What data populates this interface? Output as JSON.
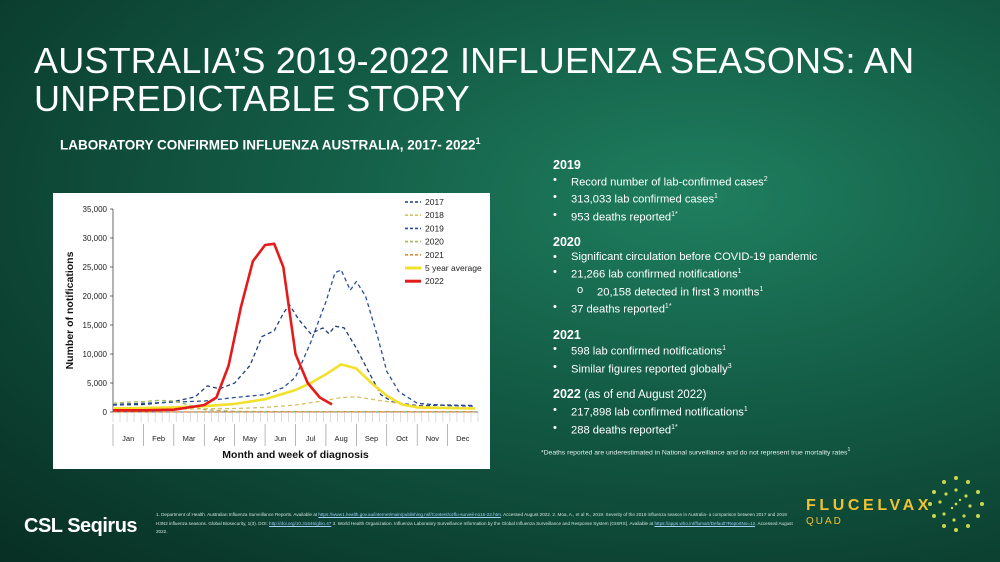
{
  "slide": {
    "title": "AUSTRALIA’S 2019-2022 INFLUENZA SEASONS: AN UNPREDICTABLE STORY",
    "chart_heading": "LABORATORY CONFIRMED INFLUENZA AUSTRALIA, 2017- 2022",
    "chart_heading_sup": "1"
  },
  "facts": [
    {
      "year": "2019",
      "note": "",
      "items": [
        {
          "text": "Record number of lab-confirmed cases",
          "sup": "2"
        },
        {
          "text": "313,033 lab confirmed cases",
          "sup": "1"
        },
        {
          "text": "953 deaths reported",
          "sup": "1*"
        }
      ]
    },
    {
      "year": "2020",
      "note": "",
      "items": [
        {
          "text": "Significant circulation before COVID-19 pandemic",
          "sup": ""
        },
        {
          "text": "21,266 lab confirmed notifications",
          "sup": "1"
        },
        {
          "text": "20,158 detected in first 3 months",
          "sup": "1",
          "sub": true
        },
        {
          "text": "37 deaths reported",
          "sup": "1*"
        }
      ]
    },
    {
      "year": "2021",
      "note": "",
      "items": [
        {
          "text": "598 lab confirmed notifications",
          "sup": "1"
        },
        {
          "text": "Similar figures reported globally",
          "sup": "3"
        }
      ]
    },
    {
      "year": "2022",
      "note": "(as of end August 2022)",
      "items": [
        {
          "text": "217,898 lab confirmed notifications",
          "sup": "1"
        },
        {
          "text": "288 deaths reported",
          "sup": "1*"
        }
      ]
    }
  ],
  "footnote": "*Deaths reported are underestimated in National surveillance and do not represent true mortality rates",
  "footnote_sup": "1",
  "references": {
    "ref1_prefix": "1. Department of Health. Australian Influenza Surveillance Reports. Available at",
    "ref1_link": "https://www1.health.gov.au/internet/main/publishing.nsf/Content/ozflu-surveil-no15-22.htm",
    "ref1_suffix": ". Accessed August 2022.",
    "ref2": "2. Moa, A., et al R., 2019. Severity of the 2019 influenza season in Australia- a comparison between 2017 and 2019 H3N2 influenza seasons. Global Biosecurity, 1(3). DOI:",
    "ref2_link": "http://doi.org/10.31646/gbio.47",
    "ref3_prefix": "3. World Health Organization. Influenza Laboratory Surveillance Information by the Global Influenza Surveillance and Response System (GISRS). Available at",
    "ref3_link": "https://apps.who.int/flumart/Default?ReportNo=12",
    "ref3_suffix": ". Accessed August 2022."
  },
  "logos": {
    "company": "CSL Seqirus",
    "brand": "FLUCELVAX",
    "brand_sub": "QUAD"
  },
  "colors": {
    "background": "#135c45",
    "brand_gold": "#f1c232"
  },
  "chart_data": {
    "type": "line",
    "title": "",
    "xlabel": "Month and week of diagnosis",
    "ylabel": "Number of notifications",
    "ylim": [
      0,
      35000
    ],
    "yticks": [
      0,
      5000,
      10000,
      15000,
      20000,
      25000,
      30000,
      35000
    ],
    "ytick_labels": [
      "0",
      "5,000",
      "10,000",
      "15,000",
      "20,000",
      "25,000",
      "30,000",
      "35,000"
    ],
    "months": [
      "Jan",
      "Feb",
      "Mar",
      "Apr",
      "May",
      "Jun",
      "Jul",
      "Aug",
      "Sep",
      "Oct",
      "Nov",
      "Dec"
    ],
    "legend_position": "top-right",
    "x_unit": "month (fractional, 0 = start of Jan)",
    "series": [
      {
        "name": "2017",
        "color": "#1f3c7a",
        "dash": "dash",
        "points": [
          [
            0,
            1200
          ],
          [
            1,
            1300
          ],
          [
            2,
            1800
          ],
          [
            2.7,
            2600
          ],
          [
            3.1,
            4500
          ],
          [
            3.5,
            4000
          ],
          [
            4,
            5000
          ],
          [
            4.5,
            8000
          ],
          [
            4.9,
            13000
          ],
          [
            5.3,
            14000
          ],
          [
            5.6,
            17000
          ],
          [
            5.8,
            18500
          ],
          [
            6.1,
            16000
          ],
          [
            6.5,
            13500
          ],
          [
            6.9,
            14500
          ],
          [
            7.1,
            13500
          ],
          [
            7.3,
            14800
          ],
          [
            7.6,
            14500
          ],
          [
            8,
            11000
          ],
          [
            8.4,
            7000
          ],
          [
            8.8,
            3000
          ],
          [
            9.2,
            1700
          ],
          [
            10,
            1100
          ],
          [
            11,
            1200
          ],
          [
            11.9,
            1100
          ]
        ]
      },
      {
        "name": "2018",
        "color": "#d4c063",
        "dash": "dash",
        "points": [
          [
            0,
            400
          ],
          [
            2,
            500
          ],
          [
            4,
            600
          ],
          [
            5,
            800
          ],
          [
            6,
            1200
          ],
          [
            7,
            2000
          ],
          [
            7.5,
            2500
          ],
          [
            8,
            2600
          ],
          [
            9,
            1800
          ],
          [
            10,
            1000
          ],
          [
            11.9,
            600
          ]
        ]
      },
      {
        "name": "2019",
        "color": "#2a4f9a",
        "dash": "dash",
        "points": [
          [
            0,
            1300
          ],
          [
            1,
            1500
          ],
          [
            2,
            1700
          ],
          [
            3,
            1900
          ],
          [
            4,
            2500
          ],
          [
            5,
            3000
          ],
          [
            5.6,
            4200
          ],
          [
            6,
            6000
          ],
          [
            6.5,
            12000
          ],
          [
            7,
            19000
          ],
          [
            7.3,
            24000
          ],
          [
            7.5,
            24500
          ],
          [
            7.8,
            21000
          ],
          [
            8,
            22500
          ],
          [
            8.3,
            20000
          ],
          [
            8.7,
            13000
          ],
          [
            9,
            7000
          ],
          [
            9.4,
            3500
          ],
          [
            10,
            1500
          ],
          [
            11,
            1100
          ],
          [
            11.9,
            1000
          ]
        ]
      },
      {
        "name": "2020",
        "color": "#a1b861",
        "dash": "dash",
        "points": [
          [
            0,
            1500
          ],
          [
            0.5,
            1700
          ],
          [
            1,
            1800
          ],
          [
            1.5,
            2000
          ],
          [
            2,
            1900
          ],
          [
            2.5,
            1200
          ],
          [
            3,
            400
          ],
          [
            4,
            100
          ],
          [
            6,
            50
          ],
          [
            8,
            50
          ],
          [
            10,
            50
          ],
          [
            11.9,
            50
          ]
        ]
      },
      {
        "name": "2021",
        "color": "#e08a3a",
        "dash": "dash",
        "points": [
          [
            0,
            20
          ],
          [
            4,
            20
          ],
          [
            8,
            20
          ],
          [
            11.9,
            20
          ]
        ]
      },
      {
        "name": "5 year average",
        "color": "#f2e12a",
        "dash": "solid",
        "points": [
          [
            0,
            600
          ],
          [
            2,
            800
          ],
          [
            3,
            1000
          ],
          [
            4,
            1400
          ],
          [
            5,
            2200
          ],
          [
            6,
            3800
          ],
          [
            6.5,
            5000
          ],
          [
            7,
            6500
          ],
          [
            7.5,
            8200
          ],
          [
            8,
            7500
          ],
          [
            8.5,
            5000
          ],
          [
            9,
            2800
          ],
          [
            9.5,
            1300
          ],
          [
            10,
            800
          ],
          [
            11.9,
            600
          ]
        ]
      },
      {
        "name": "2022",
        "color": "#e31b1b",
        "dash": "solid",
        "points": [
          [
            0,
            300
          ],
          [
            1,
            300
          ],
          [
            2,
            400
          ],
          [
            2.5,
            800
          ],
          [
            3,
            1200
          ],
          [
            3.4,
            2500
          ],
          [
            3.8,
            8000
          ],
          [
            4.2,
            18000
          ],
          [
            4.6,
            26000
          ],
          [
            5,
            28800
          ],
          [
            5.3,
            29000
          ],
          [
            5.6,
            25000
          ],
          [
            6,
            10000
          ],
          [
            6.4,
            5000
          ],
          [
            6.8,
            2500
          ],
          [
            7.2,
            1300
          ]
        ]
      }
    ]
  }
}
